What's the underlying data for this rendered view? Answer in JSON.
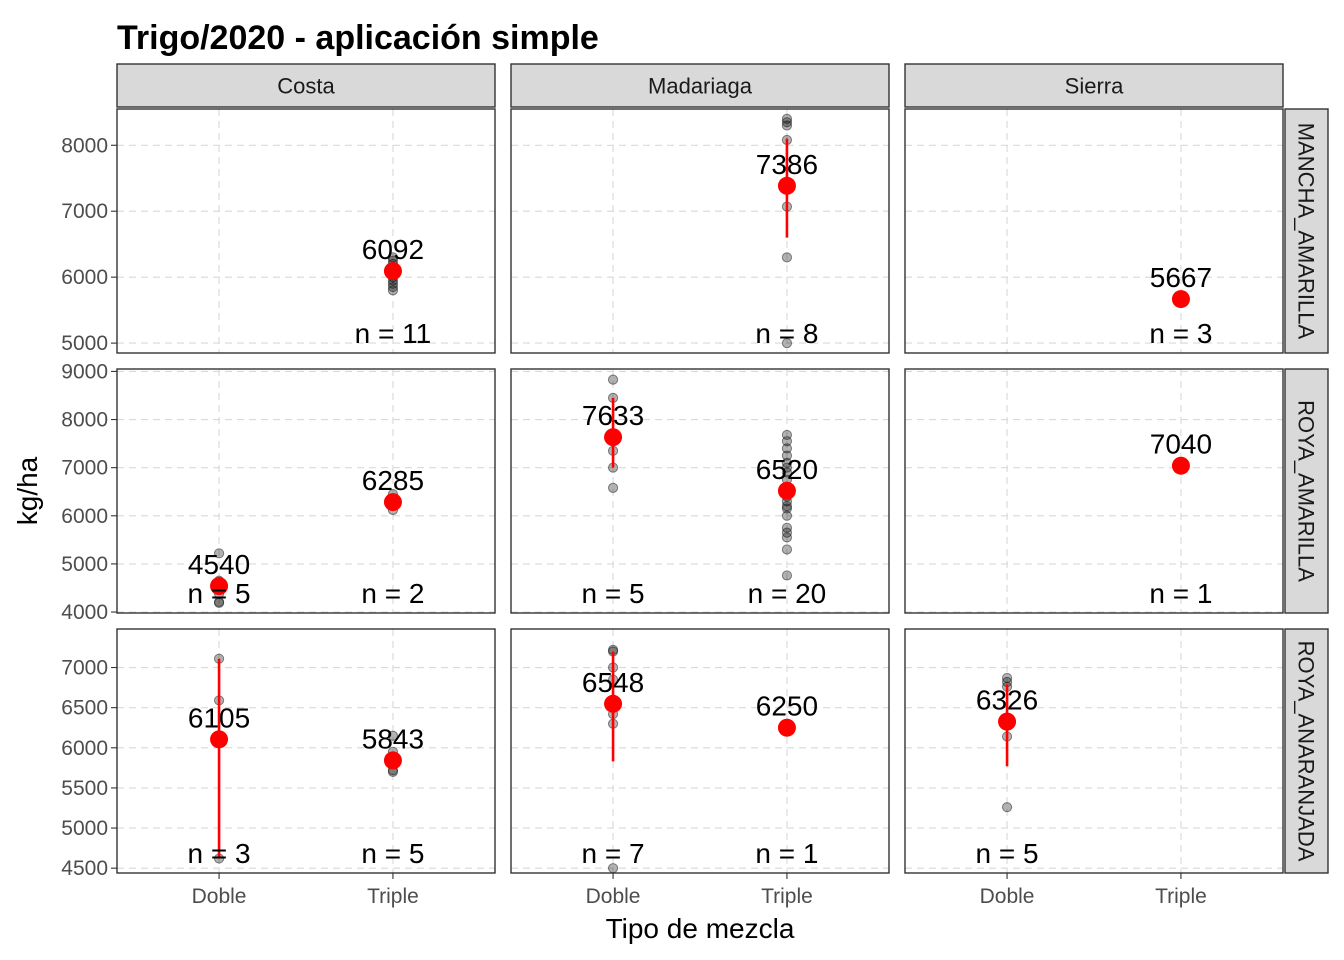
{
  "chart_data": {
    "type": "scatter",
    "title": "Trigo/2020 - aplicación simple",
    "xlabel": "Tipo de mezcla",
    "ylabel": "kg/ha",
    "x_categories": [
      "Doble",
      "Triple"
    ],
    "columns": [
      "Costa",
      "Madariaga",
      "Sierra"
    ],
    "rows": [
      {
        "name": "MANCHA_AMARILLA",
        "ylim": [
          4850,
          8550
        ],
        "yticks": [
          5000,
          6000,
          7000,
          8000
        ]
      },
      {
        "name": "ROYA_AMARILLA",
        "ylim": [
          3980,
          9050
        ],
        "yticks": [
          4000,
          5000,
          6000,
          7000,
          8000,
          9000
        ]
      },
      {
        "name": "ROYA_ANARANJADA",
        "ylim": [
          4440,
          7480
        ],
        "yticks": [
          4500,
          5000,
          5500,
          6000,
          6500,
          7000
        ]
      }
    ],
    "grid": true,
    "panels": [
      {
        "row": 0,
        "col": 0,
        "groups": [
          {
            "x": "Triple",
            "mean": 6092,
            "mean_label": "6092",
            "n_label": "n = 11",
            "range": null,
            "points": [
              6300,
              6250,
              6150,
              6100,
              6050,
              6000,
              5950,
              5900,
              5850,
              5800,
              6200
            ]
          }
        ]
      },
      {
        "row": 0,
        "col": 1,
        "groups": [
          {
            "x": "Triple",
            "mean": 7386,
            "mean_label": "7386",
            "n_label": "n = 8",
            "range": [
              6600,
              8100
            ],
            "points": [
              8400,
              8350,
              8300,
              8080,
              7070,
              6300,
              5000
            ]
          }
        ]
      },
      {
        "row": 0,
        "col": 2,
        "groups": [
          {
            "x": "Triple",
            "mean": 5667,
            "mean_label": "5667",
            "n_label": "n = 3",
            "range": null,
            "points": []
          }
        ]
      },
      {
        "row": 1,
        "col": 0,
        "groups": [
          {
            "x": "Doble",
            "mean": 4540,
            "mean_label": "4540",
            "n_label": "n = 5",
            "range": null,
            "points": [
              5220,
              4650,
              4380,
              4210,
              4190
            ]
          },
          {
            "x": "Triple",
            "mean": 6285,
            "mean_label": "6285",
            "n_label": "n = 2",
            "range": null,
            "points": [
              6120,
              6450
            ]
          }
        ]
      },
      {
        "row": 1,
        "col": 1,
        "groups": [
          {
            "x": "Doble",
            "mean": 7633,
            "mean_label": "7633",
            "n_label": "n = 5",
            "range": [
              7000,
              8450
            ],
            "points": [
              8830,
              8450,
              7350,
              7000,
              6580
            ]
          },
          {
            "x": "Triple",
            "mean": 6520,
            "mean_label": "6520",
            "n_label": "n = 20",
            "range": null,
            "points": [
              7680,
              7550,
              7400,
              7250,
              7100,
              7000,
              6900,
              6750,
              6600,
              6400,
              6300,
              6200,
              6150,
              6000,
              5750,
              5650,
              5550,
              5300,
              4760
            ]
          }
        ]
      },
      {
        "row": 1,
        "col": 2,
        "groups": [
          {
            "x": "Triple",
            "mean": 7040,
            "mean_label": "7040",
            "n_label": "n = 1",
            "range": null,
            "points": []
          }
        ]
      },
      {
        "row": 2,
        "col": 0,
        "groups": [
          {
            "x": "Doble",
            "mean": 6105,
            "mean_label": "6105",
            "n_label": "n = 3",
            "range": [
              4620,
              7110
            ],
            "points": [
              7110,
              6590,
              4620
            ]
          },
          {
            "x": "Triple",
            "mean": 5843,
            "mean_label": "5843",
            "n_label": "n = 5",
            "range": null,
            "points": [
              6150,
              5950,
              5800,
              5720,
              5700
            ]
          }
        ]
      },
      {
        "row": 2,
        "col": 1,
        "groups": [
          {
            "x": "Doble",
            "mean": 6548,
            "mean_label": "6548",
            "n_label": "n = 7",
            "range": [
              5830,
              7200
            ],
            "points": [
              7220,
              7200,
              7000,
              6850,
              6420,
              6300,
              4500
            ]
          },
          {
            "x": "Triple",
            "mean": 6250,
            "mean_label": "6250",
            "n_label": "n = 1",
            "range": null,
            "points": []
          }
        ]
      },
      {
        "row": 2,
        "col": 2,
        "groups": [
          {
            "x": "Doble",
            "mean": 6326,
            "mean_label": "6326",
            "n_label": "n = 5",
            "range": [
              5770,
              6790
            ],
            "points": [
              6870,
              6820,
              6760,
              6140,
              5260
            ]
          }
        ]
      }
    ]
  }
}
